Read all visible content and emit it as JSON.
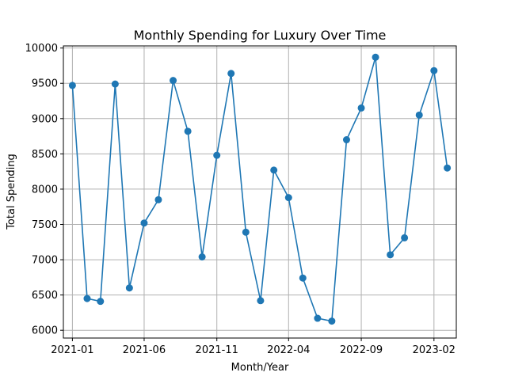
{
  "chart_data": {
    "type": "line",
    "title": "Monthly Spending for Luxury Over Time",
    "xlabel": "Month/Year",
    "ylabel": "Total Spending",
    "x": [
      "2021-01",
      "2021-02",
      "2021-03",
      "2021-04",
      "2021-05",
      "2021-06",
      "2021-07",
      "2021-08",
      "2021-09",
      "2021-10",
      "2021-11",
      "2021-12",
      "2022-01",
      "2022-02",
      "2022-03",
      "2022-04",
      "2022-05",
      "2022-06",
      "2022-07",
      "2022-08",
      "2022-09",
      "2022-10",
      "2022-11",
      "2022-12",
      "2023-01",
      "2023-02",
      "2023-03"
    ],
    "series": [
      {
        "values": [
          9470,
          6450,
          6410,
          9490,
          6600,
          7520,
          7850,
          9540,
          8820,
          7040,
          8480,
          9640,
          7390,
          6420,
          8270,
          7880,
          6740,
          6170,
          6130,
          8700,
          9150,
          9870,
          7070,
          7310,
          9050,
          9680,
          8300
        ],
        "color": "#1f77b4"
      }
    ],
    "xticks": [
      "2021-01",
      "2021-06",
      "2021-11",
      "2022-04",
      "2022-09",
      "2023-02"
    ],
    "yticks": [
      6000,
      6500,
      7000,
      7500,
      8000,
      8500,
      9000,
      9500,
      10000
    ],
    "ylim": [
      5890,
      10030
    ],
    "xlim": [
      "2020-12-13",
      "2023-03-20"
    ],
    "grid": true,
    "markers": "circle"
  }
}
